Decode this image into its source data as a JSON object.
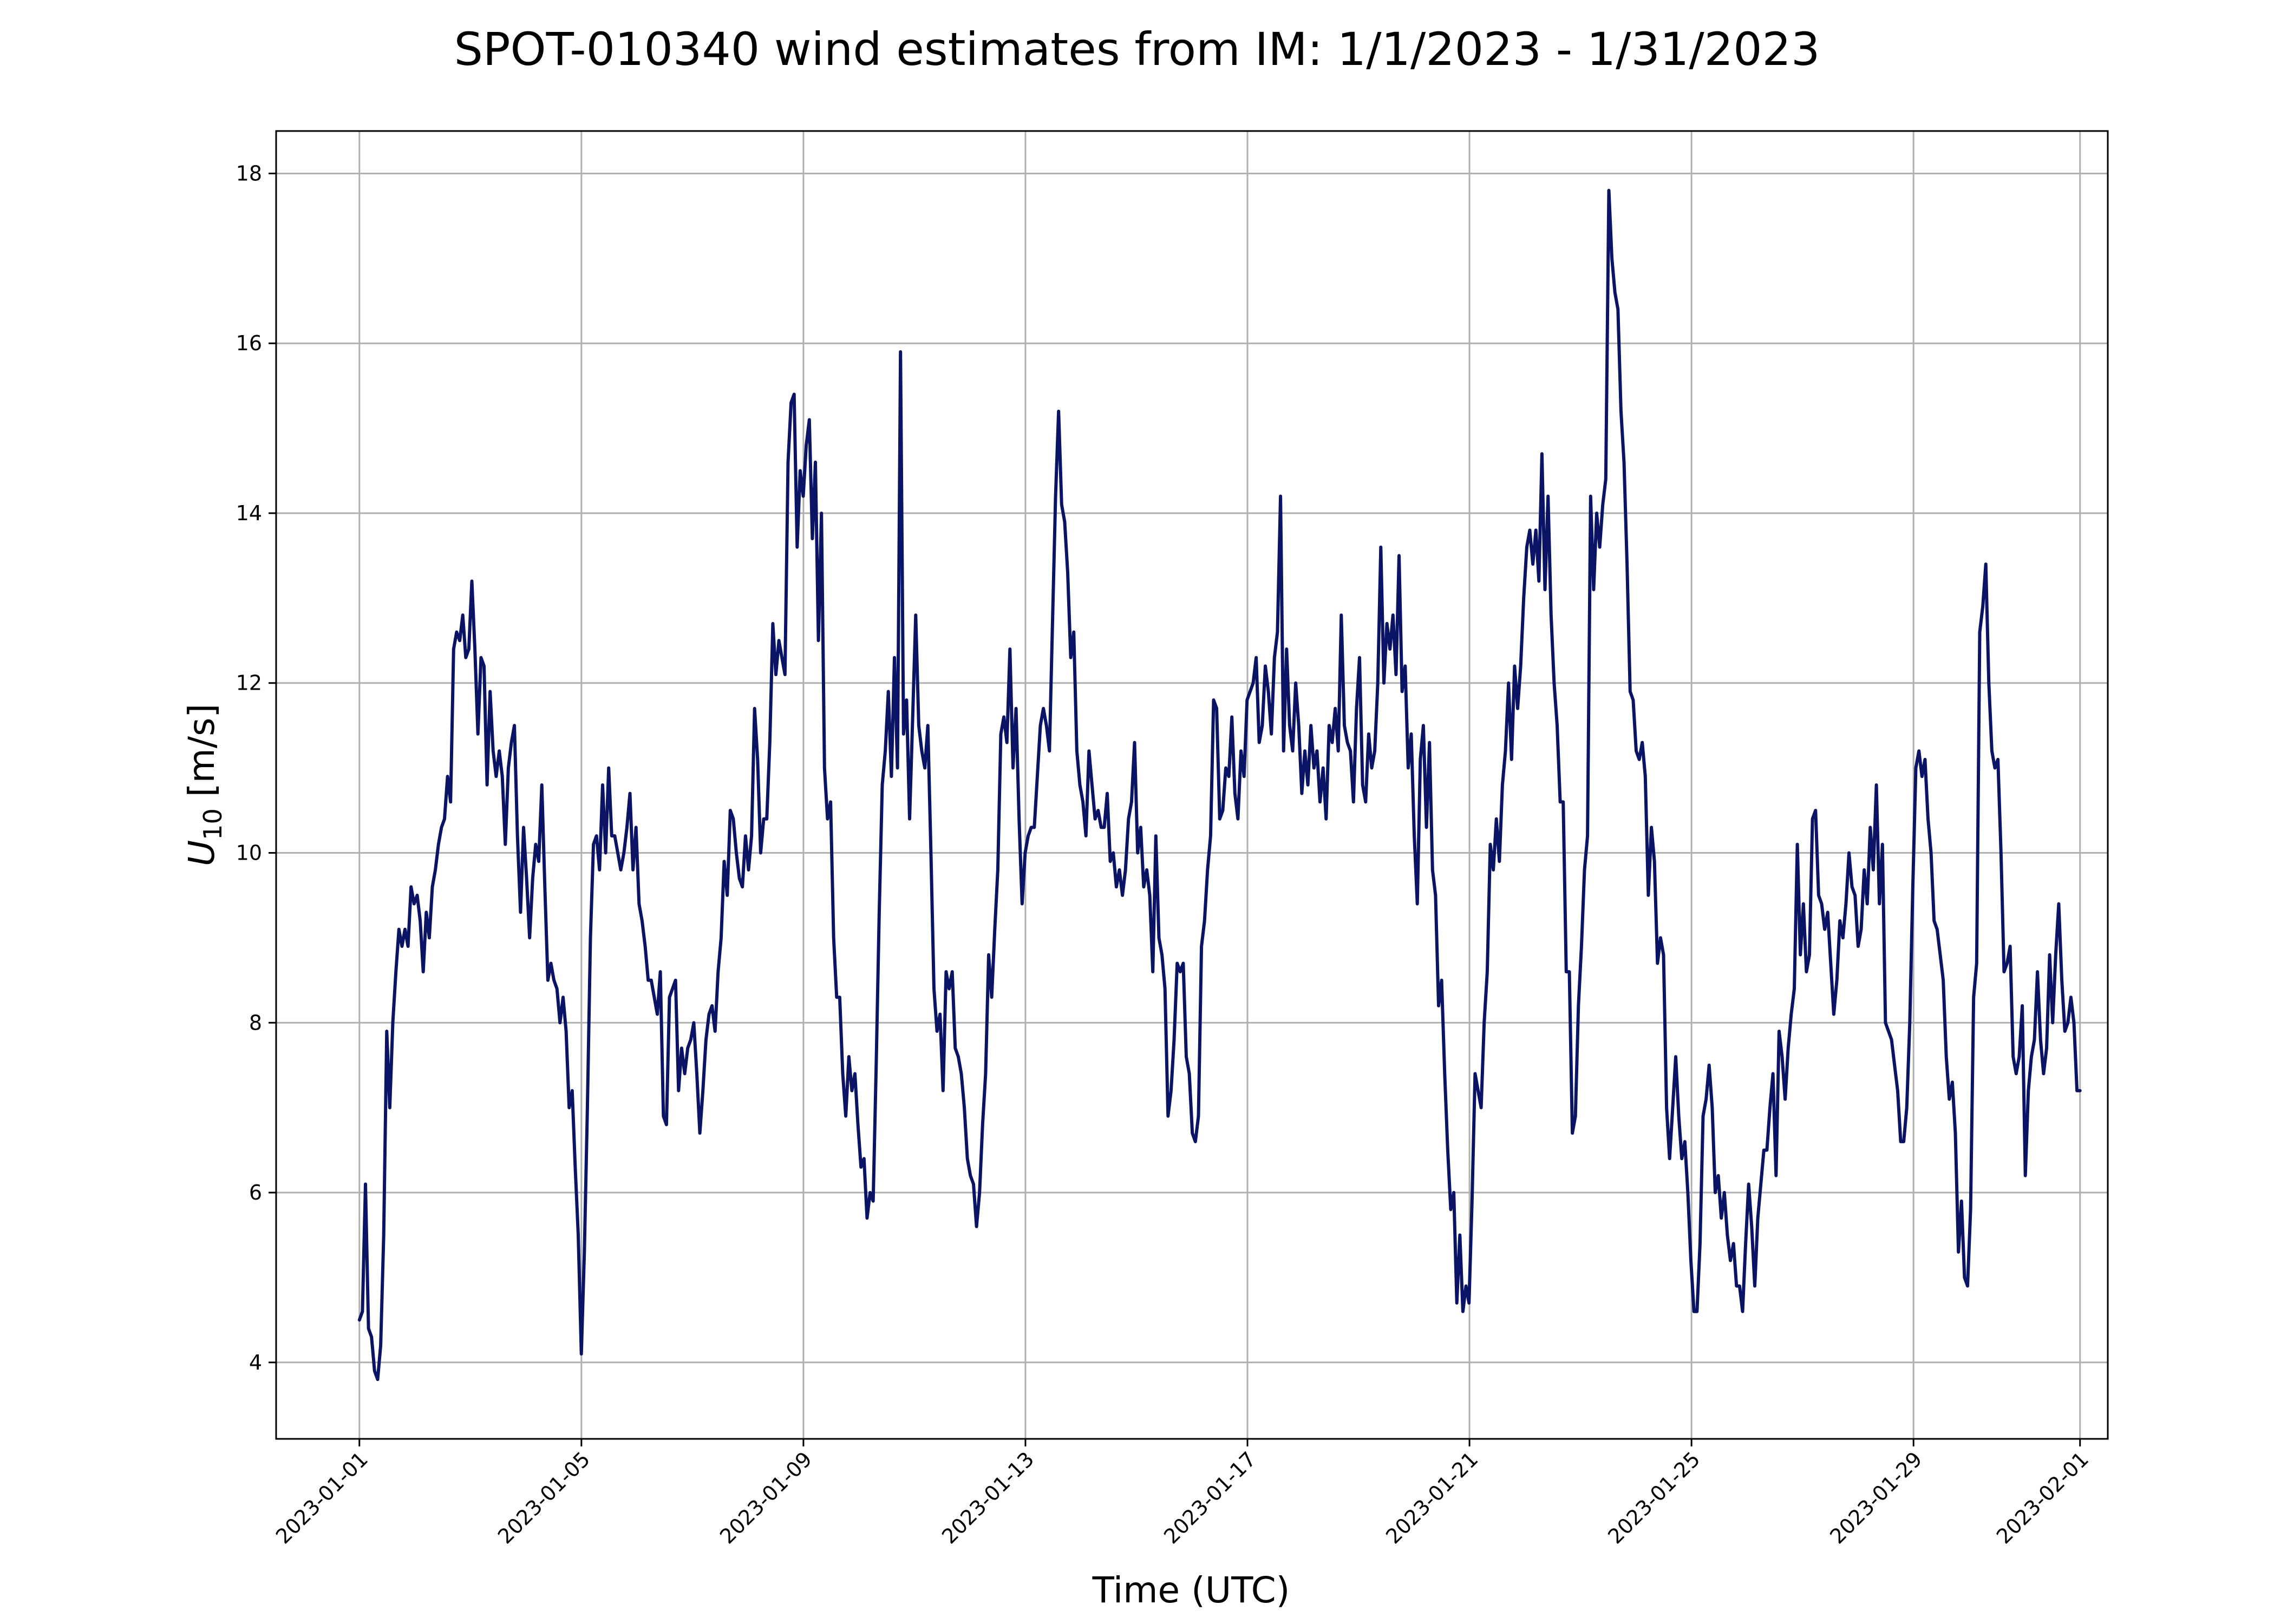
{
  "chart_data": {
    "type": "line",
    "title": "SPOT-010340 wind estimates from IM: 1/1/2023 - 1/31/2023",
    "xlabel": "Time (UTC)",
    "ylabel_main": "U",
    "ylabel_sub": "10",
    "ylabel_units": " [m/s]",
    "xlim": [
      "2022-12-30T12:00",
      "2023-02-01T12:00"
    ],
    "ylim": [
      3.1,
      18.5
    ],
    "grid": true,
    "line_color": "#0b1464",
    "x_ticks": [
      "2023-01-01",
      "2023-01-05",
      "2023-01-09",
      "2023-01-13",
      "2023-01-17",
      "2023-01-21",
      "2023-01-25",
      "2023-01-29",
      "2023-02-01"
    ],
    "y_ticks": [
      "4",
      "6",
      "8",
      "10",
      "12",
      "14",
      "16",
      "18"
    ],
    "series": [
      {
        "x_start": "2023-01-01T00:00",
        "step_hours": 1,
        "values": [
          4.5,
          4.6,
          6.1,
          4.4,
          4.3,
          3.9,
          3.8,
          4.2,
          5.5,
          7.9,
          7.0,
          8.0,
          8.6,
          9.1,
          8.9,
          9.1,
          8.9,
          9.6,
          9.4,
          9.5,
          9.2,
          8.6,
          9.3,
          9.0,
          9.6,
          9.8,
          10.1,
          10.3,
          10.4,
          10.9,
          10.6,
          12.4,
          12.6,
          12.5,
          12.8,
          12.3,
          12.4,
          13.2,
          12.4,
          11.4,
          12.3,
          12.2,
          10.8,
          11.9,
          11.2,
          10.9,
          11.2,
          10.9,
          10.1,
          11.0,
          11.3,
          11.5,
          10.2,
          9.3,
          10.3,
          9.7,
          9.0,
          9.7,
          10.1,
          9.9,
          10.8,
          9.6,
          8.5,
          8.7,
          8.5,
          8.4,
          8.0,
          8.3,
          7.9,
          7.0,
          7.2,
          6.3,
          5.5,
          4.1,
          5.3,
          7.0,
          9.0,
          10.1,
          10.2,
          9.8,
          10.8,
          10.0,
          11.0,
          10.2,
          10.2,
          10.0,
          9.8,
          10.0,
          10.3,
          10.7,
          9.8,
          10.3,
          9.4,
          9.2,
          8.9,
          8.5,
          8.5,
          8.3,
          8.1,
          8.6,
          6.9,
          6.8,
          8.3,
          8.4,
          8.5,
          7.2,
          7.7,
          7.4,
          7.7,
          7.8,
          8.0,
          7.4,
          6.7,
          7.2,
          7.8,
          8.1,
          8.2,
          7.9,
          8.6,
          9.0,
          9.9,
          9.5,
          10.5,
          10.4,
          10.0,
          9.7,
          9.6,
          10.2,
          9.8,
          10.2,
          11.7,
          11.1,
          10.0,
          10.4,
          10.4,
          11.3,
          12.7,
          12.1,
          12.5,
          12.3,
          12.1,
          14.6,
          15.3,
          15.4,
          13.6,
          14.5,
          14.2,
          14.8,
          15.1,
          13.7,
          14.6,
          12.5,
          14.0,
          11.0,
          10.4,
          10.6,
          9.0,
          8.3,
          8.3,
          7.4,
          6.9,
          7.6,
          7.2,
          7.4,
          6.8,
          6.3,
          6.4,
          5.7,
          6.0,
          5.9,
          7.5,
          9.3,
          10.8,
          11.2,
          11.9,
          10.9,
          12.3,
          11.0,
          15.9,
          11.4,
          11.8,
          10.4,
          11.6,
          12.8,
          11.5,
          11.2,
          11.0,
          11.5,
          10.0,
          8.4,
          7.9,
          8.1,
          7.2,
          8.6,
          8.4,
          8.6,
          7.7,
          7.6,
          7.4,
          7.0,
          6.4,
          6.2,
          6.1,
          5.6,
          6.0,
          6.8,
          7.4,
          8.8,
          8.3,
          9.1,
          9.8,
          11.4,
          11.6,
          11.3,
          12.4,
          11.0,
          11.7,
          10.4,
          9.4,
          10.0,
          10.2,
          10.3,
          10.3,
          10.9,
          11.5,
          11.7,
          11.5,
          11.2,
          12.7,
          14.2,
          15.2,
          14.1,
          13.9,
          13.3,
          12.3,
          12.6,
          11.2,
          10.8,
          10.6,
          10.2,
          11.2,
          10.8,
          10.4,
          10.5,
          10.3,
          10.3,
          10.7,
          9.9,
          10.0,
          9.6,
          9.8,
          9.5,
          9.8,
          10.4,
          10.6,
          11.3,
          10.0,
          10.3,
          9.6,
          9.8,
          9.5,
          8.6,
          10.2,
          9.0,
          8.8,
          8.4,
          6.9,
          7.2,
          7.8,
          8.7,
          8.6,
          8.7,
          7.6,
          7.4,
          6.7,
          6.6,
          6.9,
          8.9,
          9.2,
          9.8,
          10.2,
          11.8,
          11.7,
          10.4,
          10.5,
          11.0,
          10.9,
          11.6,
          10.7,
          10.4,
          11.2,
          10.9,
          11.8,
          11.9,
          12.0,
          12.3,
          11.3,
          11.5,
          12.2,
          11.9,
          11.4,
          12.3,
          12.6,
          14.2,
          11.2,
          12.4,
          11.5,
          11.2,
          12.0,
          11.5,
          10.7,
          11.2,
          10.8,
          11.5,
          11.0,
          11.2,
          10.6,
          11.0,
          10.4,
          11.5,
          11.3,
          11.7,
          11.2,
          12.8,
          11.5,
          11.3,
          11.2,
          10.6,
          11.7,
          12.3,
          10.8,
          10.6,
          11.4,
          11.0,
          11.2,
          12.0,
          13.6,
          12.0,
          12.7,
          12.4,
          12.8,
          12.1,
          13.5,
          11.9,
          12.2,
          11.0,
          11.4,
          10.2,
          9.4,
          11.1,
          11.5,
          10.3,
          11.3,
          9.8,
          9.5,
          8.2,
          8.5,
          7.4,
          6.5,
          5.8,
          6.0,
          4.7,
          5.5,
          4.6,
          4.9,
          4.7,
          5.9,
          7.4,
          7.2,
          7.0,
          8.0,
          8.6,
          10.1,
          9.8,
          10.4,
          9.9,
          10.8,
          11.2,
          12.0,
          11.1,
          12.2,
          11.7,
          12.2,
          13.0,
          13.6,
          13.8,
          13.4,
          13.8,
          13.2,
          14.7,
          13.1,
          14.2,
          12.8,
          12.0,
          11.5,
          10.6,
          10.6,
          8.6,
          8.6,
          6.7,
          6.9,
          8.2,
          8.9,
          9.8,
          10.2,
          14.2,
          13.1,
          14.0,
          13.6,
          14.1,
          14.4,
          17.8,
          17.0,
          16.6,
          16.4,
          15.2,
          14.6,
          13.4,
          11.9,
          11.8,
          11.2,
          11.1,
          11.3,
          10.9,
          9.5,
          10.3,
          9.9,
          8.7,
          9.0,
          8.8,
          7.0,
          6.4,
          7.0,
          7.6,
          6.9,
          6.4,
          6.6,
          6.0,
          5.2,
          4.6,
          4.6,
          5.4,
          6.9,
          7.1,
          7.5,
          7.0,
          6.0,
          6.2,
          5.7,
          6.0,
          5.5,
          5.2,
          5.4,
          4.9,
          4.9,
          4.6,
          5.4,
          6.1,
          5.6,
          4.9,
          5.7,
          6.1,
          6.5,
          6.5,
          7.0,
          7.4,
          6.2,
          7.9,
          7.6,
          7.1,
          7.7,
          8.1,
          8.4,
          10.1,
          8.8,
          9.4,
          8.6,
          8.8,
          10.4,
          10.5,
          9.5,
          9.4,
          9.1,
          9.3,
          8.7,
          8.1,
          8.5,
          9.2,
          9.0,
          9.4,
          10.0,
          9.6,
          9.5,
          8.9,
          9.1,
          9.8,
          9.4,
          10.3,
          9.8,
          10.8,
          9.4,
          10.1,
          8.0,
          7.9,
          7.8,
          7.5,
          7.2,
          6.6,
          6.6,
          7.0,
          8.0,
          9.6,
          11.0,
          11.2,
          10.9,
          11.1,
          10.4,
          10.0,
          9.2,
          9.1,
          8.8,
          8.5,
          7.6,
          7.1,
          7.3,
          6.7,
          5.3,
          5.9,
          5.0,
          4.9,
          5.8,
          8.3,
          8.7,
          12.6,
          12.9,
          13.4,
          12.0,
          11.2,
          11.0,
          11.1,
          10.0,
          8.6,
          8.7,
          8.9,
          7.6,
          7.4,
          7.6,
          8.2,
          6.2,
          7.2,
          7.6,
          7.8,
          8.6,
          7.8,
          7.4,
          7.7,
          8.8,
          8.0,
          8.8,
          9.4,
          8.5,
          7.9,
          8.0,
          8.3,
          8.0,
          7.2,
          7.2
        ]
      }
    ]
  }
}
